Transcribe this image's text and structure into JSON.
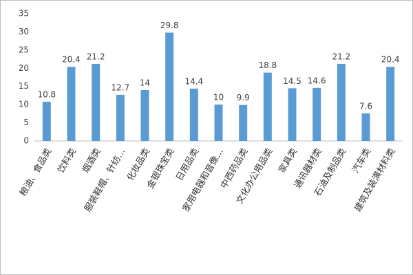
{
  "chart_data": {
    "type": "bar",
    "categories": [
      "粮油、食品类",
      "饮料类",
      "烟酒类",
      "服装鞋帽、针纺…",
      "化妆品类",
      "金银珠宝类",
      "日用品类",
      "家用电器和音像…",
      "中西药品类",
      "文化办公用品类",
      "家具类",
      "通讯器材类",
      "石油及制品类",
      "汽车类",
      "建筑及装潢材料类"
    ],
    "values": [
      10.8,
      20.4,
      21.2,
      12.7,
      14,
      29.8,
      14.4,
      10,
      9.9,
      18.8,
      14.5,
      14.6,
      21.2,
      7.6,
      20.4
    ],
    "color": "#5b9bd5",
    "ylim": [
      0,
      35
    ],
    "yticks": [
      0,
      5,
      10,
      15,
      20,
      25,
      30,
      35
    ],
    "grid": false
  }
}
